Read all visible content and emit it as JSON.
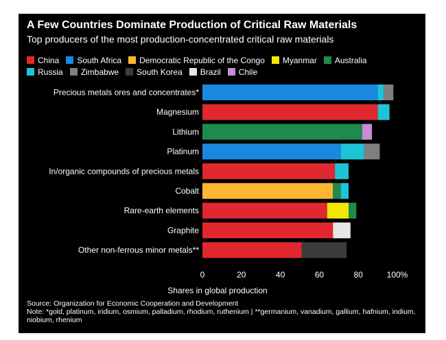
{
  "chart_data": {
    "type": "bar",
    "orientation": "horizontal",
    "stacked": true,
    "title": "A Few Countries Dominate Production of Critical Raw Materials",
    "subtitle": "Top producers of the most production-concentrated critical raw materials",
    "xlabel": "Shares in global production",
    "xlim": [
      0,
      100
    ],
    "xticks": [
      "0",
      "20",
      "40",
      "60",
      "80",
      "100%"
    ],
    "grid": false,
    "legend_position": "top",
    "categories": [
      "Precious metals ores and concentrates*",
      "Magnesium",
      "Lithium",
      "Platinum",
      "In/organic compounds of precious metals",
      "Cobalt",
      "Rare-earth elements",
      "Graphite",
      "Other non-ferrous minor metals**"
    ],
    "series": [
      {
        "name": "China",
        "color": "#e0282e",
        "values": [
          0,
          90,
          0,
          0,
          68,
          0,
          64,
          67,
          51
        ]
      },
      {
        "name": "South Africa",
        "color": "#1c87e0",
        "values": [
          90,
          0,
          0,
          71,
          0,
          0,
          0,
          0,
          0
        ]
      },
      {
        "name": "Democratic Republic of the Congo",
        "color": "#ffb733",
        "values": [
          0,
          0,
          0,
          0,
          0,
          67,
          0,
          0,
          0
        ]
      },
      {
        "name": "Myanmar",
        "color": "#f4e800",
        "values": [
          0,
          0,
          0,
          0,
          0,
          0,
          11,
          0,
          0
        ]
      },
      {
        "name": "Australia",
        "color": "#1f8a4c",
        "values": [
          0,
          0,
          82,
          0,
          0,
          4,
          4,
          0,
          0
        ]
      },
      {
        "name": "Russia",
        "color": "#1fc3d6",
        "values": [
          3,
          6,
          0,
          12,
          7,
          4,
          0,
          0,
          0
        ]
      },
      {
        "name": "Zimbabwe",
        "color": "#7f7f7f",
        "values": [
          5,
          0,
          0,
          8,
          0,
          0,
          0,
          0,
          0
        ]
      },
      {
        "name": "South Korea",
        "color": "#3c3c3c",
        "values": [
          0,
          0,
          0,
          0,
          0,
          0,
          0,
          0,
          23
        ]
      },
      {
        "name": "Brazil",
        "color": "#e6e6e6",
        "values": [
          0,
          0,
          0,
          0,
          0,
          0,
          0,
          9,
          0
        ]
      },
      {
        "name": "Chile",
        "color": "#c98bd4",
        "values": [
          0,
          0,
          5,
          0,
          0,
          0,
          0,
          0,
          0
        ]
      }
    ],
    "source": "Source: Organization for Economic Cooperation and Development",
    "note": "Note: *gold, platinum, iridium, osmium, palladium, rhodium, ruthenium | **germanium, vanadium, gallium, hafnium, indium, niobium, rhenium"
  }
}
